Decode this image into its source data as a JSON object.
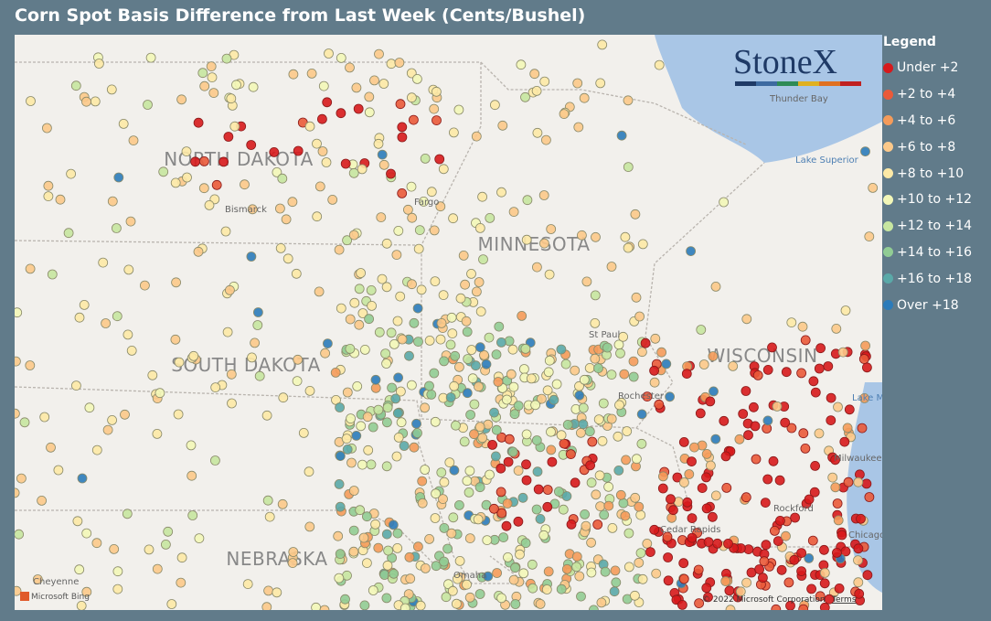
{
  "title": "Corn Spot Basis Difference from Last Week (Cents/Bushel)",
  "logo": "StoneX",
  "legend": {
    "title": "Legend",
    "items": [
      {
        "label": "Under +2",
        "color": "#d7191c"
      },
      {
        "label": "+2 to +4",
        "color": "#ea5a3a"
      },
      {
        "label": "+4 to +6",
        "color": "#f59b5a"
      },
      {
        "label": "+6 to +8",
        "color": "#fcc98a"
      },
      {
        "label": "+8 to +10",
        "color": "#fde9a6"
      },
      {
        "label": "+10 to +12",
        "color": "#f3f7b8"
      },
      {
        "label": "+12 to +14",
        "color": "#c7e6a0"
      },
      {
        "label": "+14 to +16",
        "color": "#91cc94"
      },
      {
        "label": "+16 to +18",
        "color": "#5aa9a8"
      },
      {
        "label": "Over +18",
        "color": "#2b7bba"
      }
    ]
  },
  "map_labels": {
    "states": [
      "NORTH DAKOTA",
      "SOUTH DAKOTA",
      "MINNESOTA",
      "WISCONSIN",
      "NEBRASKA"
    ],
    "places": [
      "Bismarck",
      "Fargo",
      "St Paul",
      "Rochester",
      "Thunder Bay",
      "Lake Superior",
      "Lake Michigan",
      "Milwaukee",
      "Rockford",
      "Cedar Rapids",
      "Omaha",
      "Cheyenne",
      "Chicago"
    ]
  },
  "attribution": {
    "bing": "Microsoft Bing",
    "copyright": "© 2022 Microsoft Corporation",
    "terms": "Terms"
  }
}
